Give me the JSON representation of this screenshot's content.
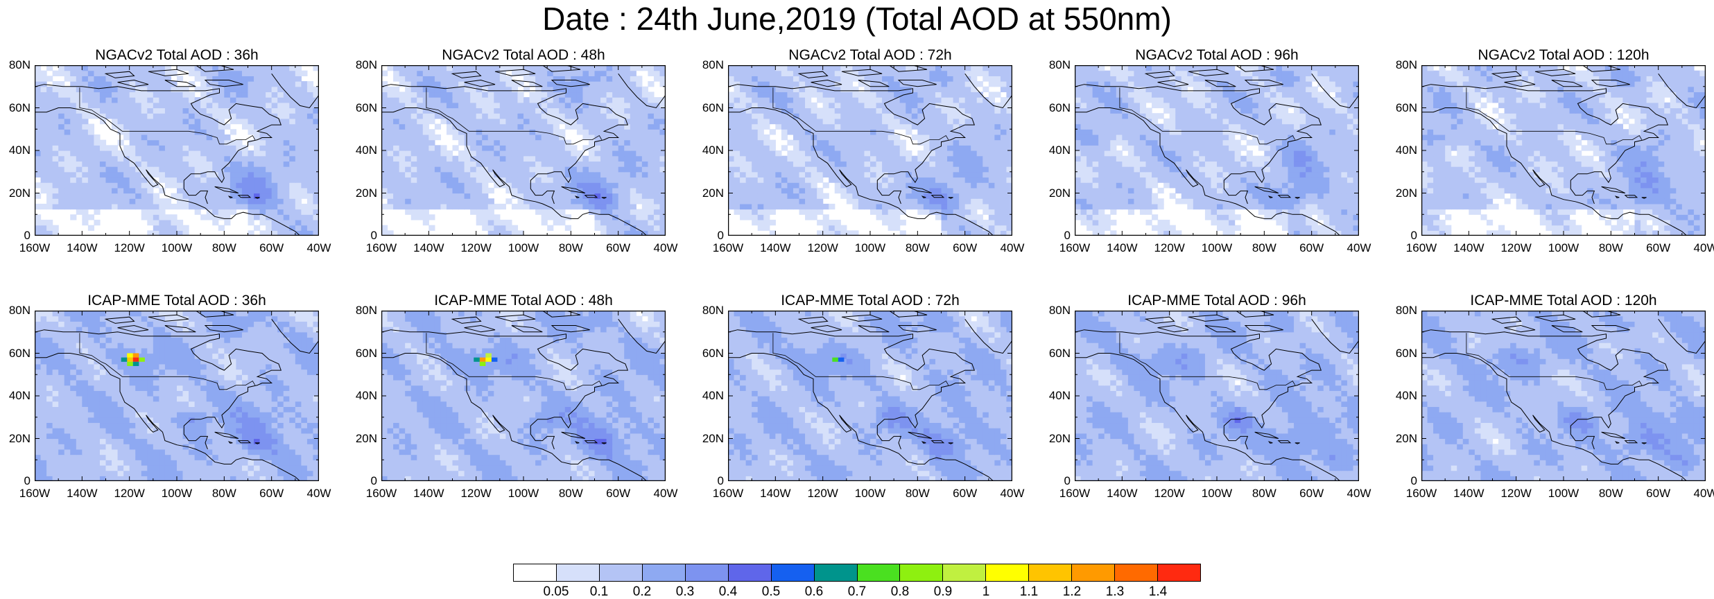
{
  "title": "Date : 24th June,2019 (Total AOD at 550nm)",
  "map_data": {
    "region": "North America",
    "lon_range": [
      "160W",
      "40W"
    ],
    "lat_range": [
      "0",
      "80N"
    ],
    "x_ticks": [
      "160W",
      "140W",
      "120W",
      "100W",
      "80W",
      "60W",
      "40W"
    ],
    "y_ticks": [
      "0",
      "20N",
      "40N",
      "60N",
      "80N"
    ],
    "panels": [
      {
        "label": "NGACv2 Total AOD : 36h",
        "row": 0,
        "col": 0,
        "model": "NGACv2",
        "lead": "36h"
      },
      {
        "label": "NGACv2 Total AOD : 48h",
        "row": 0,
        "col": 1,
        "model": "NGACv2",
        "lead": "48h"
      },
      {
        "label": "NGACv2 Total AOD : 72h",
        "row": 0,
        "col": 2,
        "model": "NGACv2",
        "lead": "72h"
      },
      {
        "label": "NGACv2 Total AOD : 96h",
        "row": 0,
        "col": 3,
        "model": "NGACv2",
        "lead": "96h"
      },
      {
        "label": "NGACv2 Total AOD : 120h",
        "row": 0,
        "col": 4,
        "model": "NGACv2",
        "lead": "120h"
      },
      {
        "label": "ICAP-MME Total AOD : 36h",
        "row": 1,
        "col": 0,
        "model": "ICAP-MME",
        "lead": "36h",
        "hotspot": 3
      },
      {
        "label": "ICAP-MME Total AOD : 48h",
        "row": 1,
        "col": 1,
        "model": "ICAP-MME",
        "lead": "48h",
        "hotspot": 2
      },
      {
        "label": "ICAP-MME Total AOD : 72h",
        "row": 1,
        "col": 2,
        "model": "ICAP-MME",
        "lead": "72h",
        "hotspot": 1
      },
      {
        "label": "ICAP-MME Total AOD : 96h",
        "row": 1,
        "col": 3,
        "model": "ICAP-MME",
        "lead": "96h"
      },
      {
        "label": "ICAP-MME Total AOD : 120h",
        "row": 1,
        "col": 4,
        "model": "ICAP-MME",
        "lead": "120h"
      }
    ]
  },
  "colorbar": {
    "colors": [
      "#ffffff",
      "#d6e0fa",
      "#b4c4f5",
      "#8ea9f2",
      "#7d93f0",
      "#5f66ea",
      "#1560f0",
      "#00948c",
      "#4ae020",
      "#8ef010",
      "#c0f040",
      "#ffff00",
      "#ffc400",
      "#ff9a00",
      "#ff6a00",
      "#ff2a10"
    ],
    "labels": [
      "0.05",
      "0.1",
      "0.2",
      "0.3",
      "0.4",
      "0.5",
      "0.6",
      "0.7",
      "0.8",
      "0.9",
      "1",
      "1.1",
      "1.2",
      "1.3",
      "1.4"
    ]
  }
}
